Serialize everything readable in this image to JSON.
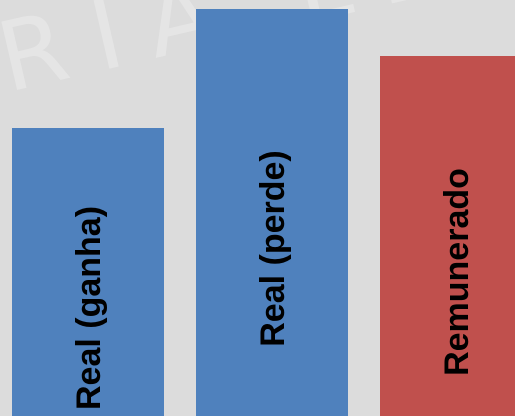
{
  "watermark": "RIA LE",
  "chart_data": {
    "type": "bar",
    "categories": [
      "Real (ganha)",
      "Real (perde)",
      "Remunerado"
    ],
    "values": [
      288,
      407,
      360
    ],
    "colors": [
      "#4f81bd",
      "#4f81bd",
      "#c0504d"
    ],
    "ylim": [
      0,
      416
    ],
    "title": "",
    "xlabel": "",
    "ylabel": "",
    "grid": false,
    "legend": "none"
  }
}
